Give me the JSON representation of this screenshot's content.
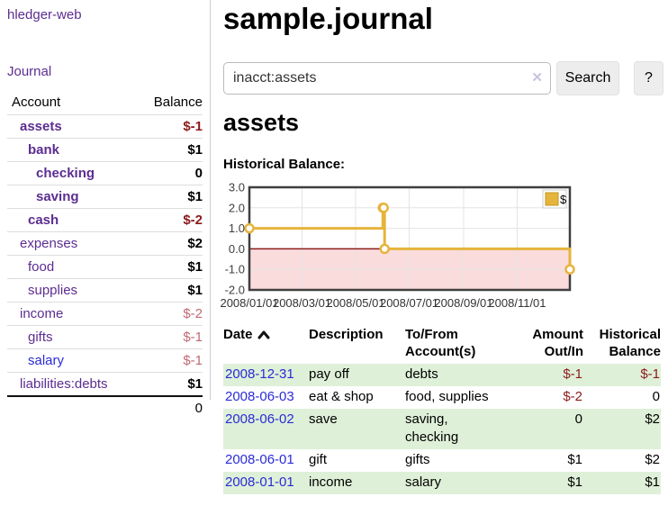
{
  "colors": {
    "link_purple": "#5c2d91",
    "link_blue": "#2b2bd6",
    "negative_strong": "#8b1a1a",
    "negative_soft": "#c06a74",
    "row_green": "#dff0d8",
    "chart_gold": "#e6b43c",
    "chart_gold_border": "#c29a20",
    "chart_negative_bg": "#fbdcdc",
    "chart_zero_line": "#8b1a1a"
  },
  "sidebar": {
    "app_title": "hledger-web",
    "journal_link": "Journal",
    "account_header": "Account",
    "balance_header": "Balance",
    "accounts": [
      {
        "name": "assets",
        "balance": "$-1",
        "depth": 1,
        "bold": true,
        "balance_style": "neg-strong"
      },
      {
        "name": "bank",
        "balance": "$1",
        "depth": 2,
        "bold": true,
        "balance_style": "pos"
      },
      {
        "name": "checking",
        "balance": "0",
        "depth": 3,
        "bold": true,
        "balance_style": "pos"
      },
      {
        "name": "saving",
        "balance": "$1",
        "depth": 3,
        "bold": true,
        "balance_style": "pos"
      },
      {
        "name": "cash",
        "balance": "$-2",
        "depth": 2,
        "bold": true,
        "balance_style": "neg-strong"
      },
      {
        "name": "expenses",
        "balance": "$2",
        "depth": 1,
        "bold": false,
        "balance_style": "pos"
      },
      {
        "name": "food",
        "balance": "$1",
        "depth": 2,
        "bold": false,
        "balance_style": "pos"
      },
      {
        "name": "supplies",
        "balance": "$1",
        "depth": 2,
        "bold": false,
        "balance_style": "pos"
      },
      {
        "name": "income",
        "balance": "$-2",
        "depth": 1,
        "bold": false,
        "balance_style": "neg-soft"
      },
      {
        "name": "gifts",
        "balance": "$-1",
        "depth": 2,
        "bold": false,
        "balance_style": "neg-soft"
      },
      {
        "name": "salary",
        "balance": "$-1",
        "depth": 2,
        "bold": false,
        "balance_style": "neg-soft",
        "link_color": "blue"
      },
      {
        "name": "liabilities:debts",
        "balance": "$1",
        "depth": 1,
        "bold": false,
        "balance_style": "pos"
      }
    ],
    "total": "0"
  },
  "main": {
    "page_title": "sample.journal",
    "search": {
      "value": "inacct:assets",
      "clear_icon": "✕",
      "search_button": "Search",
      "help_button": "?"
    },
    "account_heading": "assets",
    "chart_heading": "Historical Balance:"
  },
  "chart_data": {
    "type": "line",
    "step": true,
    "title": "Historical Balance",
    "x_start": "2008-01-01",
    "x_end": "2008-12-31",
    "ylim": [
      -2.0,
      3.0
    ],
    "yticks": [
      3.0,
      2.0,
      1.0,
      0.0,
      -1.0,
      -2.0
    ],
    "xtick_labels": [
      "2008/01/01",
      "2008/03/01",
      "2008/05/01",
      "2008/07/01",
      "2008/09/01",
      "2008/11/01"
    ],
    "grid": true,
    "legend": {
      "label": "$",
      "position": "top-right"
    },
    "series": [
      {
        "name": "$",
        "points": [
          [
            "2008-01-01",
            1
          ],
          [
            "2008-06-01",
            2
          ],
          [
            "2008-06-02",
            2
          ],
          [
            "2008-06-03",
            0
          ],
          [
            "2008-12-31",
            -1
          ]
        ]
      }
    ]
  },
  "register": {
    "headers": {
      "date": "Date",
      "description": "Description",
      "accounts": "To/From Account(s)",
      "amount": "Amount Out/In",
      "balance": "Historical Balance"
    },
    "rows": [
      {
        "date": "2008-12-31",
        "description": "pay off",
        "accounts": "debts",
        "amount": "$-1",
        "balance": "$-1"
      },
      {
        "date": "2008-06-03",
        "description": "eat & shop",
        "accounts": "food, supplies",
        "amount": "$-2",
        "balance": "0"
      },
      {
        "date": "2008-06-02",
        "description": "save",
        "accounts": "saving,\nchecking",
        "amount": "0",
        "balance": "$2"
      },
      {
        "date": "2008-06-01",
        "description": "gift",
        "accounts": "gifts",
        "amount": "$1",
        "balance": "$2"
      },
      {
        "date": "2008-01-01",
        "description": "income",
        "accounts": "salary",
        "amount": "$1",
        "balance": "$1"
      }
    ]
  }
}
